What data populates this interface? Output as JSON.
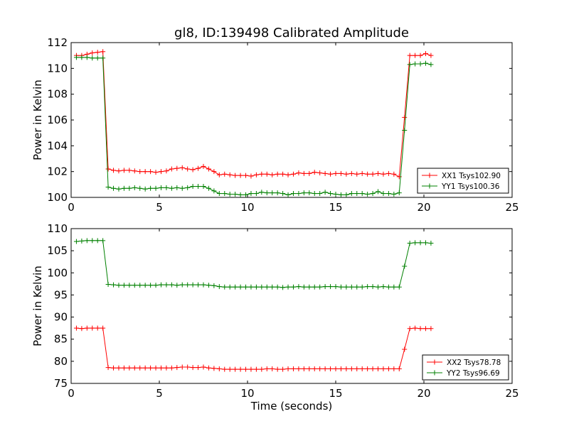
{
  "figure_title": "gl8, ID:139498 Calibrated Amplitude",
  "chart_data": [
    {
      "type": "line",
      "title": "gl8, ID:139498 Calibrated Amplitude",
      "xlabel": "",
      "ylabel": "Power in Kelvin",
      "xlim": [
        0,
        25
      ],
      "ylim": [
        100,
        112
      ],
      "xticks": [
        0,
        5,
        10,
        15,
        20,
        25
      ],
      "yticks": [
        100,
        102,
        104,
        106,
        108,
        110,
        112
      ],
      "grid": false,
      "legend_position": "lower-right",
      "series": [
        {
          "name": "XX1 Tsys102.90",
          "color": "#ff0000",
          "x": [
            0.3,
            0.6,
            0.9,
            1.2,
            1.5,
            1.8,
            2.1,
            2.4,
            2.7,
            3.0,
            3.3,
            3.6,
            3.9,
            4.2,
            4.5,
            4.8,
            5.1,
            5.4,
            5.7,
            6.0,
            6.3,
            6.6,
            6.9,
            7.2,
            7.5,
            7.8,
            8.1,
            8.4,
            8.7,
            9.0,
            9.3,
            9.6,
            9.9,
            10.2,
            10.5,
            10.8,
            11.1,
            11.4,
            11.7,
            12.0,
            12.3,
            12.6,
            12.9,
            13.2,
            13.5,
            13.8,
            14.1,
            14.4,
            14.7,
            15.0,
            15.3,
            15.6,
            15.9,
            16.2,
            16.5,
            16.8,
            17.1,
            17.4,
            17.7,
            18.0,
            18.3,
            18.6,
            18.9,
            19.2,
            19.5,
            19.8,
            20.1,
            20.4
          ],
          "y": [
            111.0,
            111.0,
            111.1,
            111.2,
            111.25,
            111.3,
            102.2,
            102.1,
            102.05,
            102.1,
            102.1,
            102.05,
            102.0,
            102.0,
            102.0,
            101.95,
            102.0,
            102.05,
            102.2,
            102.25,
            102.3,
            102.2,
            102.15,
            102.25,
            102.4,
            102.2,
            102.0,
            101.75,
            101.8,
            101.75,
            101.7,
            101.7,
            101.7,
            101.65,
            101.75,
            101.8,
            101.8,
            101.75,
            101.8,
            101.8,
            101.75,
            101.8,
            101.9,
            101.85,
            101.85,
            101.95,
            101.9,
            101.85,
            101.8,
            101.85,
            101.85,
            101.8,
            101.85,
            101.8,
            101.85,
            101.8,
            101.8,
            101.85,
            101.8,
            101.85,
            101.8,
            101.6,
            106.2,
            111.0,
            111.0,
            111.0,
            111.15,
            111.0
          ]
        },
        {
          "name": "YY1 Tsys100.36",
          "color": "#008000",
          "x": [
            0.3,
            0.6,
            0.9,
            1.2,
            1.5,
            1.8,
            2.1,
            2.4,
            2.7,
            3.0,
            3.3,
            3.6,
            3.9,
            4.2,
            4.5,
            4.8,
            5.1,
            5.4,
            5.7,
            6.0,
            6.3,
            6.6,
            6.9,
            7.2,
            7.5,
            7.8,
            8.1,
            8.4,
            8.7,
            9.0,
            9.3,
            9.6,
            9.9,
            10.2,
            10.5,
            10.8,
            11.1,
            11.4,
            11.7,
            12.0,
            12.3,
            12.6,
            12.9,
            13.2,
            13.5,
            13.8,
            14.1,
            14.4,
            14.7,
            15.0,
            15.3,
            15.6,
            15.9,
            16.2,
            16.5,
            16.8,
            17.1,
            17.4,
            17.7,
            18.0,
            18.3,
            18.6,
            18.9,
            19.2,
            19.5,
            19.8,
            20.1,
            20.4
          ],
          "y": [
            110.85,
            110.85,
            110.85,
            110.8,
            110.8,
            110.8,
            100.8,
            100.7,
            100.65,
            100.7,
            100.7,
            100.75,
            100.7,
            100.65,
            100.7,
            100.7,
            100.75,
            100.75,
            100.7,
            100.75,
            100.7,
            100.75,
            100.85,
            100.85,
            100.85,
            100.7,
            100.5,
            100.3,
            100.3,
            100.25,
            100.25,
            100.2,
            100.2,
            100.3,
            100.3,
            100.4,
            100.35,
            100.35,
            100.35,
            100.3,
            100.2,
            100.3,
            100.3,
            100.35,
            100.35,
            100.3,
            100.3,
            100.4,
            100.3,
            100.25,
            100.2,
            100.2,
            100.3,
            100.3,
            100.3,
            100.25,
            100.3,
            100.45,
            100.3,
            100.3,
            100.25,
            100.35,
            105.2,
            110.3,
            110.35,
            110.35,
            110.4,
            110.3
          ]
        }
      ]
    },
    {
      "type": "line",
      "title": "",
      "xlabel": "Time (seconds)",
      "ylabel": "Power in Kelvin",
      "xlim": [
        0,
        25
      ],
      "ylim": [
        75,
        110
      ],
      "xticks": [
        0,
        5,
        10,
        15,
        20,
        25
      ],
      "yticks": [
        75,
        80,
        85,
        90,
        95,
        100,
        105,
        110
      ],
      "grid": false,
      "legend_position": "lower-right",
      "series": [
        {
          "name": "XX2 Tsys78.78",
          "color": "#ff0000",
          "x": [
            0.3,
            0.6,
            0.9,
            1.2,
            1.5,
            1.8,
            2.1,
            2.4,
            2.7,
            3.0,
            3.3,
            3.6,
            3.9,
            4.2,
            4.5,
            4.8,
            5.1,
            5.4,
            5.7,
            6.0,
            6.3,
            6.6,
            6.9,
            7.2,
            7.5,
            7.8,
            8.1,
            8.4,
            8.7,
            9.0,
            9.3,
            9.6,
            9.9,
            10.2,
            10.5,
            10.8,
            11.1,
            11.4,
            11.7,
            12.0,
            12.3,
            12.6,
            12.9,
            13.2,
            13.5,
            13.8,
            14.1,
            14.4,
            14.7,
            15.0,
            15.3,
            15.6,
            15.9,
            16.2,
            16.5,
            16.8,
            17.1,
            17.4,
            17.7,
            18.0,
            18.3,
            18.6,
            18.9,
            19.2,
            19.5,
            19.8,
            20.1,
            20.4
          ],
          "y": [
            87.5,
            87.4,
            87.5,
            87.5,
            87.5,
            87.5,
            78.6,
            78.5,
            78.5,
            78.5,
            78.5,
            78.5,
            78.5,
            78.5,
            78.5,
            78.5,
            78.5,
            78.5,
            78.5,
            78.6,
            78.7,
            78.7,
            78.6,
            78.6,
            78.7,
            78.5,
            78.4,
            78.3,
            78.2,
            78.2,
            78.2,
            78.2,
            78.2,
            78.2,
            78.2,
            78.2,
            78.3,
            78.3,
            78.2,
            78.2,
            78.3,
            78.3,
            78.3,
            78.3,
            78.3,
            78.3,
            78.3,
            78.3,
            78.3,
            78.3,
            78.3,
            78.3,
            78.3,
            78.3,
            78.3,
            78.3,
            78.3,
            78.3,
            78.3,
            78.3,
            78.3,
            78.3,
            82.7,
            87.4,
            87.5,
            87.4,
            87.4,
            87.4
          ]
        },
        {
          "name": "YY2 Tsys96.69",
          "color": "#008000",
          "x": [
            0.3,
            0.6,
            0.9,
            1.2,
            1.5,
            1.8,
            2.1,
            2.4,
            2.7,
            3.0,
            3.3,
            3.6,
            3.9,
            4.2,
            4.5,
            4.8,
            5.1,
            5.4,
            5.7,
            6.0,
            6.3,
            6.6,
            6.9,
            7.2,
            7.5,
            7.8,
            8.1,
            8.4,
            8.7,
            9.0,
            9.3,
            9.6,
            9.9,
            10.2,
            10.5,
            10.8,
            11.1,
            11.4,
            11.7,
            12.0,
            12.3,
            12.6,
            12.9,
            13.2,
            13.5,
            13.8,
            14.1,
            14.4,
            14.7,
            15.0,
            15.3,
            15.6,
            15.9,
            16.2,
            16.5,
            16.8,
            17.1,
            17.4,
            17.7,
            18.0,
            18.3,
            18.6,
            18.9,
            19.2,
            19.5,
            19.8,
            20.1,
            20.4
          ],
          "y": [
            107.1,
            107.2,
            107.3,
            107.3,
            107.3,
            107.3,
            97.4,
            97.3,
            97.2,
            97.2,
            97.2,
            97.2,
            97.2,
            97.2,
            97.2,
            97.2,
            97.3,
            97.3,
            97.3,
            97.2,
            97.3,
            97.3,
            97.3,
            97.3,
            97.3,
            97.2,
            97.1,
            96.9,
            96.8,
            96.8,
            96.8,
            96.8,
            96.8,
            96.8,
            96.8,
            96.8,
            96.8,
            96.8,
            96.8,
            96.7,
            96.8,
            96.8,
            96.9,
            96.8,
            96.8,
            96.8,
            96.8,
            96.9,
            96.9,
            96.9,
            96.8,
            96.8,
            96.8,
            96.8,
            96.8,
            96.9,
            96.9,
            96.8,
            96.9,
            96.8,
            96.8,
            96.8,
            101.5,
            106.7,
            106.8,
            106.8,
            106.8,
            106.7
          ]
        }
      ]
    }
  ]
}
